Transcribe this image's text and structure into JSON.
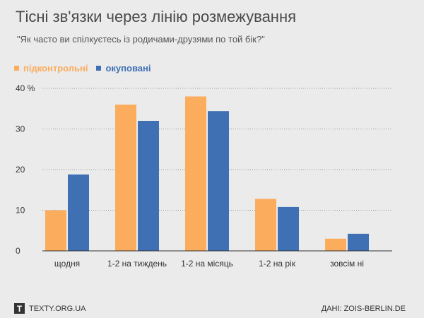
{
  "header": {
    "title": "Тісні зв'язки через лінію розмежування",
    "subtitle": "\"Як часто ви спілкуєтесь із родичами-друзями по той бік?\""
  },
  "footer": {
    "logo_letter": "T",
    "site": "TEXTY.ORG.UA",
    "source": "ДАНІ: ZOIS-BERLIN.DE"
  },
  "colors": {
    "controlled": "#fbac5c",
    "occupied": "#3e70b3"
  },
  "chart_data": {
    "type": "bar",
    "title": "Тісні зв'язки через лінію розмежування",
    "subtitle": "\"Як часто ви спілкуєтесь із родичами-друзями по той бік?\"",
    "categories": [
      "щодня",
      "1-2 на тиждень",
      "1-2 на місяць",
      "1-2 на рік",
      "зовсім ні"
    ],
    "series": [
      {
        "name": "підконтрольні",
        "values": [
          10,
          36,
          38,
          12.8,
          3
        ]
      },
      {
        "name": "окуповані",
        "values": [
          18.8,
          32,
          34.4,
          10.8,
          4.2
        ]
      }
    ],
    "ylim": [
      0,
      40
    ],
    "yticks": [
      0,
      10,
      20,
      30,
      40
    ],
    "ytick_labels": [
      "0",
      "10",
      "20",
      "30",
      "40 %"
    ],
    "grid": true,
    "legend": "top-left"
  }
}
